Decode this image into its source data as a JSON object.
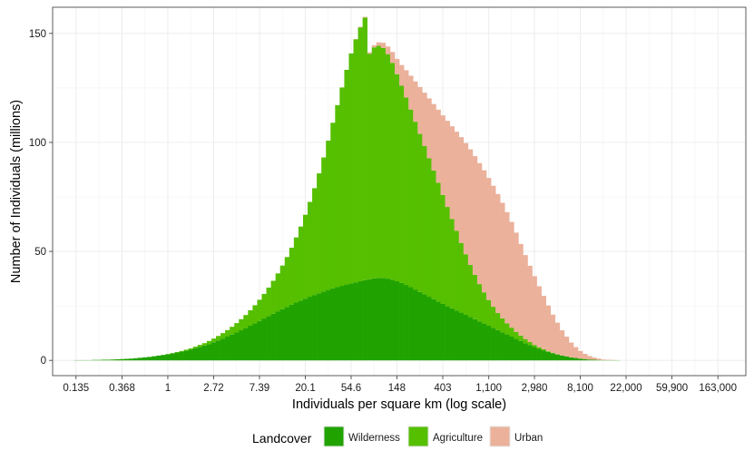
{
  "chart_data": {
    "type": "bar",
    "stacked": true,
    "xlabel": "Individuals per square km (log scale)",
    "ylabel": "Number of Individuals (millions)",
    "x_scale": "log",
    "x_ticks": [
      0.135,
      0.368,
      1,
      2.72,
      7.39,
      20.1,
      54.6,
      148,
      403,
      1100,
      2980,
      8100,
      22000,
      59900,
      163000
    ],
    "x_tick_labels": [
      "0.135",
      "0.368",
      "1",
      "2.72",
      "7.39",
      "20.1",
      "54.6",
      "148",
      "403",
      "1,100",
      "2,980",
      "8,100",
      "22,000",
      "59,900",
      "163,000"
    ],
    "xlim": [
      0.081,
      300000
    ],
    "y_ticks": [
      0,
      50,
      100,
      150
    ],
    "ylim": [
      -7,
      162
    ],
    "grid": true,
    "legend": {
      "title": "Landcover",
      "position": "bottom"
    },
    "log_x_bin_centers": [
      -2.0,
      -1.9,
      -1.8,
      -1.7,
      -1.6,
      -1.5,
      -1.4,
      -1.3,
      -1.2,
      -1.1,
      -1.0,
      -0.9,
      -0.8,
      -0.7,
      -0.6,
      -0.5,
      -0.4,
      -0.3,
      -0.2,
      -0.1,
      0.0,
      0.1,
      0.2,
      0.3,
      0.4,
      0.5,
      0.6,
      0.7,
      0.8,
      0.9,
      1.0,
      1.1,
      1.2,
      1.3,
      1.4,
      1.5,
      1.6,
      1.7,
      1.8,
      1.9,
      2.0,
      2.1,
      2.2,
      2.3,
      2.4,
      2.5,
      2.6,
      2.7,
      2.8,
      2.9,
      3.0,
      3.1,
      3.2,
      3.3,
      3.4,
      3.5,
      3.6,
      3.7,
      3.8,
      3.9,
      4.0,
      4.1,
      4.2,
      4.3,
      4.4,
      4.5,
      4.6,
      4.7,
      4.8,
      4.9,
      5.0,
      5.1,
      5.2,
      5.3,
      5.4,
      5.5,
      5.6,
      5.7,
      5.8,
      5.9,
      6.0,
      6.1,
      6.2,
      6.3,
      6.4,
      6.5,
      6.6,
      6.7,
      6.8,
      6.9,
      7.0,
      7.1,
      7.2,
      7.3,
      7.4,
      7.5,
      7.6,
      7.7,
      7.8,
      7.9,
      8.0,
      8.1,
      8.2,
      8.3,
      8.4,
      8.5,
      8.6,
      8.7,
      8.8,
      8.9,
      9.0,
      9.1,
      9.2,
      9.3,
      9.4,
      9.5,
      9.6,
      9.7,
      9.8,
      9.9,
      10.0,
      10.1,
      10.2,
      10.3,
      10.4,
      10.5,
      10.6,
      10.7,
      10.8,
      10.9,
      11.0,
      11.1,
      11.2,
      11.3,
      11.4,
      11.5,
      11.6,
      11.7,
      11.8,
      11.9,
      12.0,
      12.1
    ],
    "series": [
      {
        "name": "Wilderness",
        "color": "#20a300",
        "values": [
          0.1,
          0.1,
          0.1,
          0.1,
          0.2,
          0.2,
          0.3,
          0.3,
          0.4,
          0.5,
          0.6,
          0.7,
          0.8,
          1.0,
          1.2,
          1.4,
          1.6,
          1.9,
          2.2,
          2.5,
          2.8,
          3.2,
          3.6,
          4.0,
          4.5,
          5.0,
          5.6,
          6.2,
          6.8,
          7.5,
          8.3,
          9.1,
          10.0,
          10.9,
          11.8,
          12.8,
          13.8,
          14.8,
          15.9,
          17.0,
          18.1,
          19.2,
          20.3,
          21.4,
          22.5,
          23.5,
          24.5,
          25.5,
          26.5,
          27.4,
          28.3,
          29.2,
          30.0,
          30.8,
          31.6,
          32.3,
          33.0,
          33.6,
          34.2,
          34.8,
          35.3,
          35.8,
          36.3,
          36.8,
          37.2,
          37.6,
          37.8,
          37.8,
          37.5,
          37.0,
          36.3,
          35.5,
          34.6,
          33.6,
          32.5,
          31.4,
          30.3,
          29.2,
          28.1,
          27.0,
          25.9,
          24.9,
          23.9,
          22.9,
          21.9,
          20.9,
          19.9,
          18.9,
          17.9,
          16.9,
          15.9,
          14.9,
          13.9,
          12.9,
          11.9,
          10.9,
          9.9,
          8.9,
          7.9,
          7.0,
          6.1,
          5.3,
          4.6,
          3.9,
          3.3,
          2.7,
          2.2,
          1.8,
          1.4,
          1.1,
          0.8,
          0.6,
          0.4,
          0.3,
          0.2,
          0.1,
          0.1,
          0.1,
          0.1,
          0.0,
          0.0,
          0.0,
          0.0,
          0.0,
          0.0,
          0.0,
          0.0,
          0.0,
          0.0,
          0.0,
          0.0,
          0.0,
          0.0,
          0.0,
          0.0,
          0.0,
          0.0,
          0.0,
          0.0,
          0.0,
          0.0,
          0.0
        ]
      },
      {
        "name": "Agriculture",
        "color": "#55bf00",
        "values": [
          0.0,
          0.0,
          0.0,
          0.0,
          0.0,
          0.0,
          0.0,
          0.0,
          0.0,
          0.0,
          0.0,
          0.0,
          0.0,
          0.0,
          0.0,
          0.0,
          0.0,
          0.0,
          0.0,
          0.0,
          0.1,
          0.1,
          0.2,
          0.3,
          0.4,
          0.5,
          0.7,
          0.9,
          1.1,
          1.4,
          1.7,
          2.1,
          2.5,
          3.0,
          3.6,
          4.3,
          5.1,
          6.0,
          7.1,
          8.3,
          9.7,
          11.3,
          13.1,
          15.1,
          17.4,
          20.0,
          22.9,
          26.2,
          29.9,
          34.0,
          38.5,
          43.5,
          49.0,
          55.0,
          61.5,
          68.5,
          76.0,
          83.5,
          91.0,
          98.5,
          105.5,
          111.5,
          116.5,
          120.5,
          103.5,
          106.0,
          106.5,
          105.5,
          103.0,
          99.5,
          95.0,
          90.5,
          86.0,
          81.5,
          77.0,
          72.5,
          68.0,
          63.5,
          59.0,
          54.5,
          50.0,
          45.5,
          41.0,
          36.5,
          32.0,
          27.8,
          23.9,
          20.3,
          17.1,
          14.3,
          11.8,
          9.7,
          7.9,
          6.4,
          5.1,
          4.1,
          3.2,
          2.5,
          1.9,
          1.4,
          1.0,
          0.7,
          0.5,
          0.3,
          0.2,
          0.1,
          0.1,
          0.1,
          0.0,
          0.0,
          0.0,
          0.0,
          0.0,
          0.0,
          0.0,
          0.0,
          0.0,
          0.0,
          0.0,
          0.0,
          0.0,
          0.0,
          0.0,
          0.0,
          0.0,
          0.0,
          0.0,
          0.0,
          0.0,
          0.0,
          0.0,
          0.0,
          0.0,
          0.0,
          0.0,
          0.0,
          0.0,
          0.0,
          0.0,
          0.0,
          0.0,
          0.0
        ]
      },
      {
        "name": "Urban",
        "color": "#ebb19b",
        "values": [
          0.0,
          0.0,
          0.0,
          0.0,
          0.0,
          0.0,
          0.0,
          0.0,
          0.0,
          0.0,
          0.0,
          0.0,
          0.0,
          0.0,
          0.0,
          0.0,
          0.0,
          0.0,
          0.0,
          0.0,
          0.0,
          0.0,
          0.0,
          0.0,
          0.0,
          0.0,
          0.0,
          0.0,
          0.0,
          0.0,
          0.0,
          0.0,
          0.0,
          0.0,
          0.0,
          0.0,
          0.0,
          0.0,
          0.0,
          0.0,
          0.0,
          0.0,
          0.0,
          0.0,
          0.0,
          0.0,
          0.0,
          0.0,
          0.0,
          0.0,
          0.0,
          0.0,
          0.0,
          0.0,
          0.0,
          0.0,
          0.0,
          0.0,
          0.0,
          0.0,
          0.0,
          0.1,
          0.2,
          0.3,
          0.6,
          1.0,
          1.6,
          2.4,
          3.5,
          5.0,
          7.0,
          9.5,
          12.5,
          15.5,
          18.5,
          21.5,
          24.5,
          27.5,
          30.5,
          33.5,
          36.5,
          39.5,
          42.5,
          45.5,
          48.5,
          51.0,
          53.0,
          54.5,
          55.5,
          56.0,
          56.0,
          55.5,
          54.5,
          53.0,
          51.0,
          48.5,
          45.5,
          42.0,
          38.5,
          35.0,
          31.5,
          28.0,
          24.5,
          21.0,
          17.5,
          14.5,
          11.5,
          9.0,
          6.8,
          5.0,
          3.5,
          2.4,
          1.6,
          1.0,
          0.6,
          0.3,
          0.2,
          0.1,
          0.0,
          0.0,
          0.0,
          0.0,
          0.0,
          0.0,
          0.0,
          0.0,
          0.0,
          0.0,
          0.0,
          0.0,
          0.0,
          0.0,
          0.0,
          0.0,
          0.0,
          0.0,
          0.0,
          0.0,
          0.0,
          0.0,
          0.0,
          0.0
        ]
      }
    ]
  }
}
